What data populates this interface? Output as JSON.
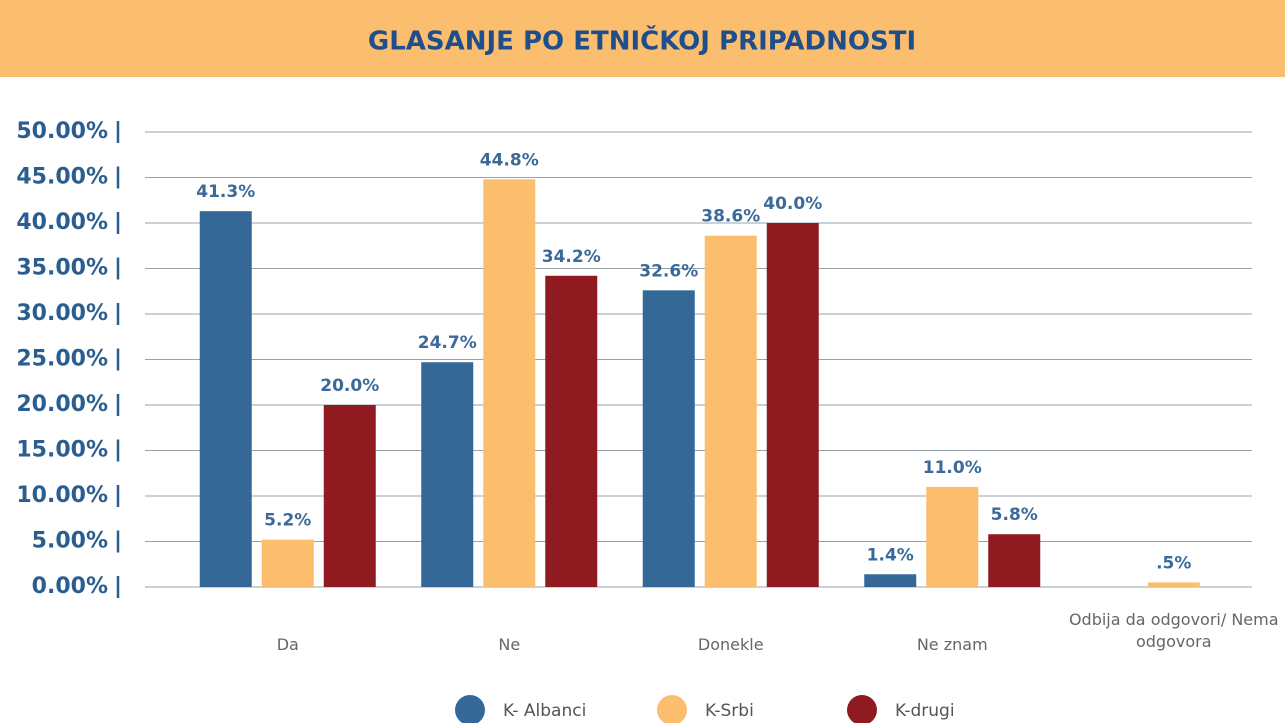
{
  "chart_data": {
    "type": "bar",
    "title": "GLASANJE PO ETNIČKOJ PRIPADNOSTI",
    "categories": [
      "Da",
      "Ne",
      "Donekle",
      "Ne znam",
      "Odbija da odgovori/ Nema odgovora"
    ],
    "series": [
      {
        "name": "K- Albanci",
        "color": "#346897",
        "values": [
          41.3,
          24.7,
          32.6,
          1.4,
          null
        ],
        "value_labels": [
          "41.3%",
          "24.7%",
          "32.6%",
          "1.4%",
          null
        ]
      },
      {
        "name": "K-Srbi",
        "color": "#fbbd6e",
        "values": [
          5.2,
          44.8,
          38.6,
          11.0,
          0.5
        ],
        "value_labels": [
          "5.2%",
          "44.8%",
          "38.6%",
          "11.0%",
          ".5%"
        ]
      },
      {
        "name": "K-drugi",
        "color": "#8f1a1f",
        "values": [
          20.0,
          34.2,
          40.0,
          5.8,
          null
        ],
        "value_labels": [
          "20.0%",
          "34.2%",
          "40.0%",
          "5.8%",
          null
        ]
      }
    ],
    "ylim": [
      0,
      50
    ],
    "yticks": [
      {
        "value": 0,
        "label": "0.00%"
      },
      {
        "value": 5,
        "label": "5.00%"
      },
      {
        "value": 10,
        "label": "10.00%"
      },
      {
        "value": 15,
        "label": "15.00%"
      },
      {
        "value": 20,
        "label": "20.00%"
      },
      {
        "value": 25,
        "label": "25.00%"
      },
      {
        "value": 30,
        "label": "30.00%"
      },
      {
        "value": 35,
        "label": "35.00%"
      },
      {
        "value": 40,
        "label": "40.00%"
      },
      {
        "value": 45,
        "label": "45.00%"
      },
      {
        "value": 50,
        "label": "50.00%"
      }
    ],
    "grid": true,
    "legend": "bottom"
  }
}
